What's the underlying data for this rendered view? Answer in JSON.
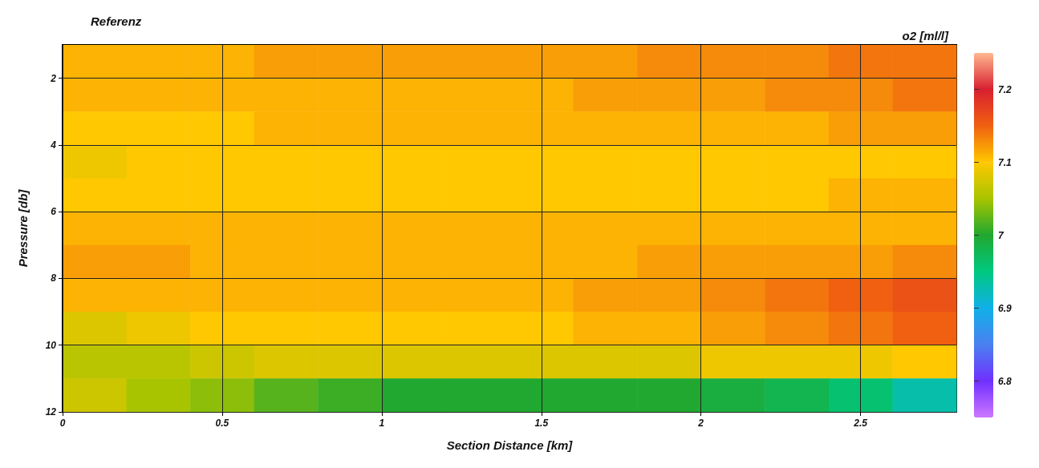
{
  "chart_data": {
    "type": "heatmap",
    "title": "Referenz",
    "xlabel": "Section Distance [km]",
    "ylabel": "Pressure [db]",
    "clabel": "o2 [ml/l]",
    "x": [
      0.1,
      0.3,
      0.5,
      0.7,
      0.9,
      1.1,
      1.3,
      1.5,
      1.7,
      1.9,
      2.1,
      2.3,
      2.5,
      2.7
    ],
    "y": [
      1.5,
      2.5,
      3.5,
      4.5,
      5.5,
      6.5,
      7.5,
      8.5,
      9.5,
      10.5,
      11.5
    ],
    "cells": [
      [
        7.11,
        7.11,
        7.11,
        7.12,
        7.12,
        7.12,
        7.12,
        7.12,
        7.12,
        7.13,
        7.13,
        7.13,
        7.14,
        7.14
      ],
      [
        7.11,
        7.11,
        7.11,
        7.11,
        7.11,
        7.11,
        7.11,
        7.11,
        7.12,
        7.12,
        7.12,
        7.13,
        7.13,
        7.14
      ],
      [
        7.1,
        7.1,
        7.1,
        7.11,
        7.11,
        7.11,
        7.11,
        7.11,
        7.11,
        7.11,
        7.11,
        7.11,
        7.12,
        7.12
      ],
      [
        7.09,
        7.1,
        7.1,
        7.1,
        7.1,
        7.1,
        7.1,
        7.1,
        7.1,
        7.1,
        7.1,
        7.1,
        7.1,
        7.1
      ],
      [
        7.1,
        7.1,
        7.1,
        7.1,
        7.1,
        7.1,
        7.1,
        7.1,
        7.1,
        7.1,
        7.1,
        7.1,
        7.11,
        7.11
      ],
      [
        7.11,
        7.11,
        7.11,
        7.11,
        7.11,
        7.11,
        7.11,
        7.11,
        7.11,
        7.11,
        7.11,
        7.11,
        7.11,
        7.11
      ],
      [
        7.12,
        7.12,
        7.11,
        7.11,
        7.11,
        7.11,
        7.11,
        7.11,
        7.11,
        7.12,
        7.12,
        7.12,
        7.12,
        7.13
      ],
      [
        7.11,
        7.11,
        7.11,
        7.11,
        7.11,
        7.11,
        7.11,
        7.11,
        7.12,
        7.12,
        7.13,
        7.14,
        7.15,
        7.16
      ],
      [
        7.08,
        7.09,
        7.1,
        7.1,
        7.1,
        7.1,
        7.1,
        7.1,
        7.11,
        7.11,
        7.12,
        7.13,
        7.14,
        7.15
      ],
      [
        7.06,
        7.06,
        7.07,
        7.08,
        7.08,
        7.08,
        7.08,
        7.08,
        7.08,
        7.08,
        7.09,
        7.09,
        7.09,
        7.1
      ],
      [
        7.07,
        7.05,
        7.04,
        7.02,
        7.01,
        7.0,
        7.0,
        7.0,
        7.0,
        7.0,
        6.99,
        6.98,
        6.96,
        6.93
      ]
    ],
    "xlim": [
      0,
      2.8
    ],
    "xticks": [
      0,
      0.5,
      1,
      1.5,
      2,
      2.5
    ],
    "ylim": [
      12,
      1
    ],
    "yticks": [
      2,
      4,
      6,
      8,
      10,
      12
    ],
    "clim": [
      6.75,
      7.25
    ],
    "cticks": [
      6.8,
      6.9,
      7,
      7.1,
      7.2
    ],
    "grid": true
  }
}
